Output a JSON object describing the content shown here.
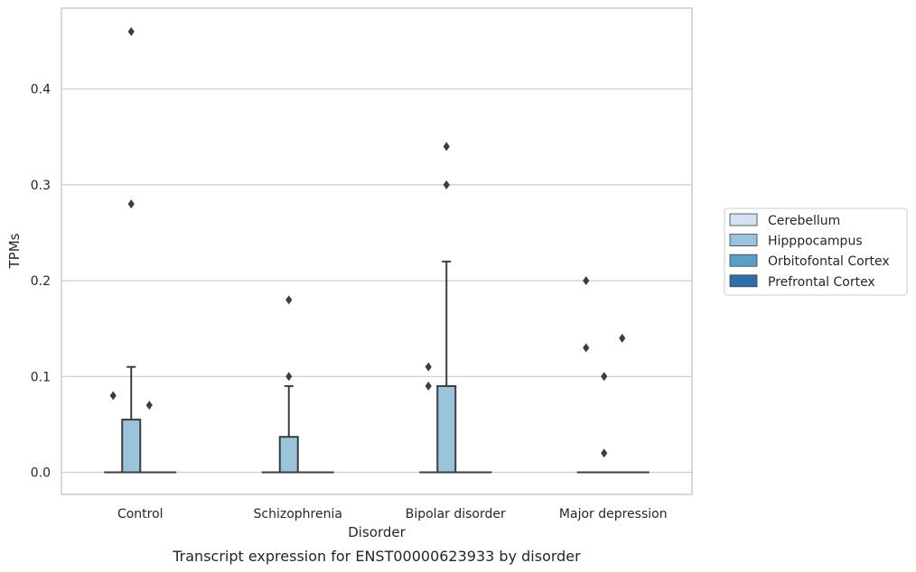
{
  "chart_data": {
    "type": "box",
    "title": "",
    "caption": "Transcript expression for ENST00000623933 by disorder",
    "xlabel": "Disorder",
    "ylabel": "TPMs",
    "ylim": [
      -0.022,
      0.485
    ],
    "yticks": [
      0.0,
      0.1,
      0.2,
      0.3,
      0.4
    ],
    "grid": "horizontal",
    "legend_position": "right",
    "categories": [
      "Control",
      "Schizophrenia",
      "Bipolar disorder",
      "Major depression"
    ],
    "series": [
      {
        "name": "Cerebellum",
        "color": "#d1e2f2",
        "boxes": [
          {
            "q1": 0,
            "median": 0,
            "q3": 0,
            "whisker_low": 0,
            "whisker_high": 0,
            "outliers": [
              0.08
            ]
          },
          {
            "q1": 0,
            "median": 0,
            "q3": 0,
            "whisker_low": 0,
            "whisker_high": 0,
            "outliers": []
          },
          {
            "q1": 0,
            "median": 0,
            "q3": 0,
            "whisker_low": 0,
            "whisker_high": 0,
            "outliers": [
              0.09,
              0.11
            ]
          },
          {
            "q1": 0,
            "median": 0,
            "q3": 0,
            "whisker_low": 0,
            "whisker_high": 0,
            "outliers": [
              0.13,
              0.2
            ]
          }
        ]
      },
      {
        "name": "Hipppocampus",
        "color": "#9ac3dc",
        "boxes": [
          {
            "q1": 0,
            "median": 0,
            "q3": 0.055,
            "whisker_low": 0,
            "whisker_high": 0.11,
            "outliers": [
              0.28,
              0.46
            ]
          },
          {
            "q1": 0,
            "median": 0,
            "q3": 0.037,
            "whisker_low": 0,
            "whisker_high": 0.09,
            "outliers": [
              0.1,
              0.18
            ]
          },
          {
            "q1": 0,
            "median": 0,
            "q3": 0.09,
            "whisker_low": 0,
            "whisker_high": 0.22,
            "outliers": [
              0.3,
              0.34
            ]
          },
          {
            "q1": 0,
            "median": 0,
            "q3": 0,
            "whisker_low": 0,
            "whisker_high": 0,
            "outliers": [
              0.02,
              0.1
            ]
          }
        ]
      },
      {
        "name": "Orbitofontal Cortex",
        "color": "#5a9ec9",
        "boxes": [
          {
            "q1": 0,
            "median": 0,
            "q3": 0,
            "whisker_low": 0,
            "whisker_high": 0,
            "outliers": [
              0.07
            ]
          },
          {
            "q1": 0,
            "median": 0,
            "q3": 0,
            "whisker_low": 0,
            "whisker_high": 0,
            "outliers": []
          },
          {
            "q1": 0,
            "median": 0,
            "q3": 0,
            "whisker_low": 0,
            "whisker_high": 0,
            "outliers": []
          },
          {
            "q1": 0,
            "median": 0,
            "q3": 0,
            "whisker_low": 0,
            "whisker_high": 0,
            "outliers": [
              0.14
            ]
          }
        ]
      },
      {
        "name": "Prefrontal Cortex",
        "color": "#2c6fab",
        "boxes": [
          {
            "q1": 0,
            "median": 0,
            "q3": 0,
            "whisker_low": 0,
            "whisker_high": 0,
            "outliers": []
          },
          {
            "q1": 0,
            "median": 0,
            "q3": 0,
            "whisker_low": 0,
            "whisker_high": 0,
            "outliers": []
          },
          {
            "q1": 0,
            "median": 0,
            "q3": 0,
            "whisker_low": 0,
            "whisker_high": 0,
            "outliers": []
          },
          {
            "q1": 0,
            "median": 0,
            "q3": 0,
            "whisker_low": 0,
            "whisker_high": 0,
            "outliers": []
          }
        ]
      }
    ],
    "colors": {
      "grid": "#cccccc",
      "frame": "#cccccc",
      "line": "#3d3d3d",
      "text": "#262626"
    }
  }
}
